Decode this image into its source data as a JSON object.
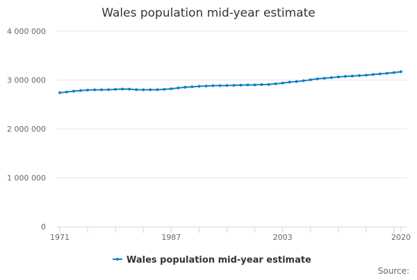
{
  "chart_data": {
    "type": "line",
    "title": "Wales population mid-year estimate",
    "xlabel": "",
    "ylabel": "",
    "source_label": "Source:",
    "x": [
      1971,
      1972,
      1973,
      1974,
      1975,
      1976,
      1977,
      1978,
      1979,
      1980,
      1981,
      1982,
      1983,
      1984,
      1985,
      1986,
      1987,
      1988,
      1989,
      1990,
      1991,
      1992,
      1993,
      1994,
      1995,
      1996,
      1997,
      1998,
      1999,
      2000,
      2001,
      2002,
      2003,
      2004,
      2005,
      2006,
      2007,
      2008,
      2009,
      2010,
      2011,
      2012,
      2013,
      2014,
      2015,
      2016,
      2017,
      2018,
      2019,
      2020
    ],
    "series": [
      {
        "name": "Wales population mid-year estimate",
        "color": "#0f7fc4",
        "values": [
          2740300,
          2755000,
          2773000,
          2785000,
          2795000,
          2799000,
          2801000,
          2804000,
          2810000,
          2816000,
          2813500,
          2804000,
          2801000,
          2801000,
          2804000,
          2811000,
          2821000,
          2838000,
          2852000,
          2862000,
          2873000,
          2877000,
          2884000,
          2887000,
          2889000,
          2891000,
          2895000,
          2900000,
          2901000,
          2907000,
          2910200,
          2923000,
          2938000,
          2957000,
          2969000,
          2985000,
          3006000,
          3025000,
          3038000,
          3050000,
          3063800,
          3074100,
          3082400,
          3092000,
          3099100,
          3113200,
          3125200,
          3138600,
          3152900,
          3169600
        ]
      }
    ],
    "xlim": [
      1971,
      2020
    ],
    "ylim": [
      0,
      4000000
    ],
    "x_tick_labels": [
      "1971",
      "1987",
      "2003",
      "2020"
    ],
    "y_ticks": [
      0,
      1000000,
      2000000,
      3000000,
      4000000
    ],
    "y_tick_labels": [
      "0",
      "1 000 000",
      "2 000 000",
      "3 000 000",
      "4 000 000"
    ],
    "grid": "horizontal",
    "legend": "bottom"
  }
}
